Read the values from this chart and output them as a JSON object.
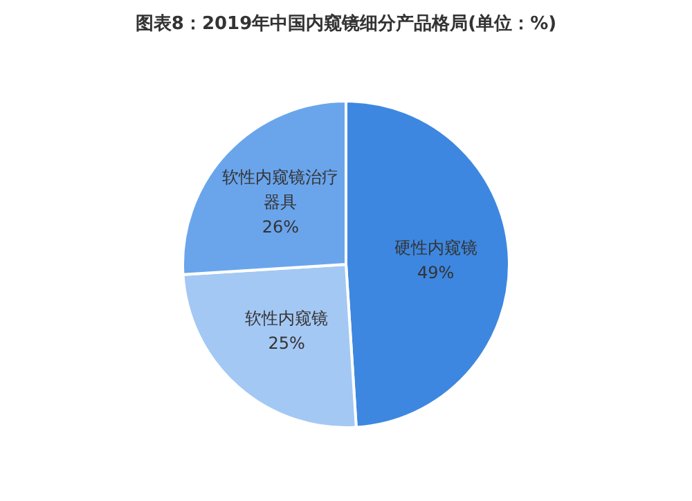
{
  "chart_data": {
    "type": "pie",
    "title": "图表8：2019年中国内窥镜细分产品格局(单位：%)",
    "categories": [
      "硬性内窥镜",
      "软性内窥镜",
      "软性内窥镜治疗器具"
    ],
    "values": [
      49,
      25,
      26
    ],
    "value_labels": [
      "49%",
      "25%",
      "26%"
    ],
    "colors": [
      "#3d87e0",
      "#a4c8f4",
      "#6aa5ec"
    ]
  }
}
